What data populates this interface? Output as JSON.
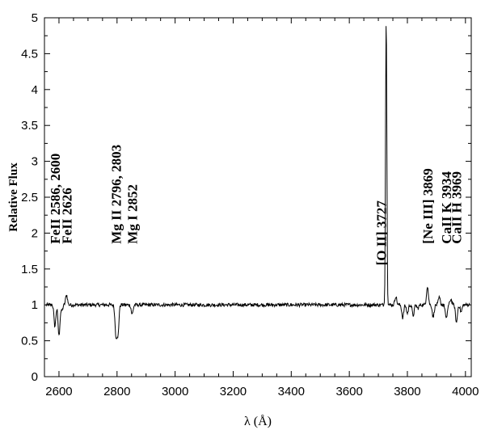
{
  "chart_data": {
    "type": "line",
    "xlabel": "λ (Å)",
    "ylabel": "Relative Flux",
    "xlim": [
      2550,
      4020
    ],
    "ylim": [
      0,
      5
    ],
    "xticks": [
      2600,
      2800,
      3000,
      3200,
      3400,
      3600,
      3800,
      4000
    ],
    "xtick_labels": [
      "2600",
      "2800",
      "3000",
      "3200",
      "3400",
      "3600",
      "3800",
      "4000"
    ],
    "yticks": [
      0,
      0.5,
      1,
      1.5,
      2,
      2.5,
      3,
      3.5,
      4,
      4.5,
      5
    ],
    "ytick_labels": [
      "0",
      "0.5",
      "1",
      "1.5",
      "2",
      "2.5",
      "3",
      "3.5",
      "4",
      "4.5",
      "5"
    ],
    "grid": false,
    "series": [
      {
        "color": "#000000",
        "baseline": 1.0,
        "features": [
          {
            "x": 2586,
            "y": 0.7
          },
          {
            "x": 2600,
            "y": 0.57
          },
          {
            "x": 2610,
            "y": 0.92
          },
          {
            "x": 2626,
            "y": 1.14
          },
          {
            "x": 2796,
            "y": 0.6
          },
          {
            "x": 2803,
            "y": 0.58
          },
          {
            "x": 2852,
            "y": 0.87
          },
          {
            "x": 3727,
            "y": 5.0
          },
          {
            "x": 3760,
            "y": 1.12
          },
          {
            "x": 3784,
            "y": 0.82
          },
          {
            "x": 3800,
            "y": 0.88
          },
          {
            "x": 3820,
            "y": 0.85
          },
          {
            "x": 3836,
            "y": 0.95
          },
          {
            "x": 3869,
            "y": 1.26
          },
          {
            "x": 3889,
            "y": 0.83
          },
          {
            "x": 3910,
            "y": 1.1
          },
          {
            "x": 3934,
            "y": 0.8
          },
          {
            "x": 3950,
            "y": 1.08
          },
          {
            "x": 3969,
            "y": 0.75
          },
          {
            "x": 3985,
            "y": 0.9
          }
        ]
      }
    ],
    "annotations": [
      {
        "id": "feii1",
        "text": "FeII 2586, 2600",
        "x": 2586,
        "y": 1.85
      },
      {
        "id": "feii2",
        "text": "FeII 2626",
        "x": 2626,
        "y": 1.85
      },
      {
        "id": "mgii",
        "text": "Mg II 2796, 2803",
        "x": 2796,
        "y": 1.85
      },
      {
        "id": "mgi",
        "text": "Mg I 2852",
        "x": 2852,
        "y": 1.85
      },
      {
        "id": "oii",
        "text": "[O II] 3727",
        "x": 3710,
        "y": 1.55
      },
      {
        "id": "neiii",
        "text": "[Ne III] 3869",
        "x": 3869,
        "y": 1.85
      },
      {
        "id": "caiik",
        "text": "CaII K 3934",
        "x": 3934,
        "y": 1.85
      },
      {
        "id": "caiih",
        "text": "CaII H 3969",
        "x": 3969,
        "y": 1.85
      }
    ]
  }
}
